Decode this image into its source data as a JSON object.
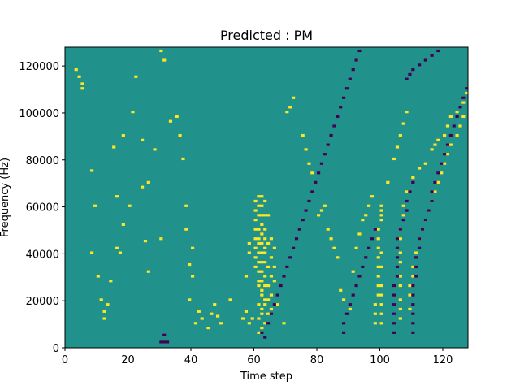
{
  "chart_data": {
    "type": "heatmap",
    "title": "Predicted : PM",
    "xlabel": "Time step",
    "ylabel": "Frequency (Hz)",
    "xlim": [
      0,
      128
    ],
    "ylim": [
      0,
      128000
    ],
    "x_ticks": [
      "0",
      "20",
      "40",
      "60",
      "80",
      "100",
      "120"
    ],
    "y_ticks": [
      "0",
      "20000",
      "40000",
      "60000",
      "80000",
      "100000",
      "120000"
    ],
    "grid": false,
    "legend": "none",
    "colors": {
      "background": "#21918c",
      "high": "#fde725",
      "low": "#440154"
    },
    "levels": {
      "background": 0,
      "high": 1,
      "low": -1
    },
    "n_freq_bins": 128,
    "high_cells": [
      [
        5,
        110
      ],
      [
        5,
        112
      ],
      [
        4,
        115
      ],
      [
        3,
        118
      ],
      [
        8,
        75
      ],
      [
        9,
        60
      ],
      [
        8,
        40
      ],
      [
        10,
        30
      ],
      [
        11,
        20
      ],
      [
        12,
        15
      ],
      [
        12,
        12
      ],
      [
        13,
        18
      ],
      [
        20,
        60
      ],
      [
        18,
        90
      ],
      [
        15,
        85
      ],
      [
        14,
        28
      ],
      [
        17,
        40
      ],
      [
        16,
        42
      ],
      [
        18,
        52
      ],
      [
        16,
        64
      ],
      [
        22,
        115
      ],
      [
        21,
        100
      ],
      [
        24,
        88
      ],
      [
        28,
        84
      ],
      [
        26,
        70
      ],
      [
        24,
        68
      ],
      [
        25,
        45
      ],
      [
        26,
        32
      ],
      [
        30,
        46
      ],
      [
        30,
        126
      ],
      [
        31,
        122
      ],
      [
        33,
        96
      ],
      [
        35,
        98
      ],
      [
        36,
        90
      ],
      [
        37,
        80
      ],
      [
        38,
        60
      ],
      [
        38,
        50
      ],
      [
        40,
        42
      ],
      [
        39,
        35
      ],
      [
        40,
        30
      ],
      [
        39,
        20
      ],
      [
        42,
        15
      ],
      [
        41,
        10
      ],
      [
        43,
        12
      ],
      [
        45,
        8
      ],
      [
        46,
        14
      ],
      [
        47,
        18
      ],
      [
        48,
        13
      ],
      [
        49,
        10
      ],
      [
        52,
        20
      ],
      [
        56,
        12
      ],
      [
        57,
        15
      ],
      [
        58,
        10
      ],
      [
        57,
        30
      ],
      [
        58,
        40
      ],
      [
        58,
        44
      ],
      [
        59,
        12
      ],
      [
        60,
        62
      ],
      [
        60,
        58
      ],
      [
        60,
        54
      ],
      [
        60,
        50
      ],
      [
        60,
        46
      ],
      [
        60,
        42
      ],
      [
        60,
        38
      ],
      [
        60,
        34
      ],
      [
        61,
        64
      ],
      [
        61,
        60
      ],
      [
        61,
        56
      ],
      [
        61,
        50
      ],
      [
        61,
        46
      ],
      [
        61,
        44
      ],
      [
        61,
        40
      ],
      [
        61,
        36
      ],
      [
        61,
        32
      ],
      [
        61,
        28
      ],
      [
        61,
        26
      ],
      [
        61,
        18
      ],
      [
        61,
        12
      ],
      [
        61,
        6
      ],
      [
        62,
        64
      ],
      [
        62,
        60
      ],
      [
        62,
        56
      ],
      [
        62,
        52
      ],
      [
        62,
        48
      ],
      [
        62,
        44
      ],
      [
        62,
        40
      ],
      [
        62,
        36
      ],
      [
        62,
        32
      ],
      [
        62,
        28
      ],
      [
        62,
        24
      ],
      [
        62,
        22
      ],
      [
        62,
        16
      ],
      [
        62,
        14
      ],
      [
        62,
        8
      ],
      [
        63,
        62
      ],
      [
        63,
        56
      ],
      [
        63,
        50
      ],
      [
        63,
        46
      ],
      [
        63,
        42
      ],
      [
        63,
        40
      ],
      [
        63,
        36
      ],
      [
        63,
        30
      ],
      [
        63,
        26
      ],
      [
        63,
        20
      ],
      [
        63,
        18
      ],
      [
        63,
        10
      ],
      [
        64,
        56
      ],
      [
        64,
        44
      ],
      [
        64,
        34
      ],
      [
        64,
        26
      ],
      [
        64,
        20
      ],
      [
        64,
        14
      ],
      [
        65,
        46
      ],
      [
        65,
        38
      ],
      [
        65,
        30
      ],
      [
        65,
        22
      ],
      [
        65,
        16
      ],
      [
        66,
        42
      ],
      [
        66,
        34
      ],
      [
        66,
        28
      ],
      [
        67,
        18
      ],
      [
        69,
        10
      ],
      [
        70,
        100
      ],
      [
        71,
        102
      ],
      [
        72,
        106
      ],
      [
        75,
        90
      ],
      [
        76,
        84
      ],
      [
        77,
        78
      ],
      [
        78,
        74
      ],
      [
        80,
        56
      ],
      [
        81,
        58
      ],
      [
        82,
        60
      ],
      [
        83,
        50
      ],
      [
        84,
        46
      ],
      [
        85,
        42
      ],
      [
        86,
        38
      ],
      [
        87,
        24
      ],
      [
        88,
        20
      ],
      [
        90,
        16
      ],
      [
        91,
        32
      ],
      [
        92,
        42
      ],
      [
        93,
        48
      ],
      [
        94,
        54
      ],
      [
        95,
        56
      ],
      [
        96,
        60
      ],
      [
        97,
        64
      ],
      [
        98,
        10
      ],
      [
        98,
        14
      ],
      [
        98,
        18
      ],
      [
        99,
        22
      ],
      [
        99,
        26
      ],
      [
        99,
        30
      ],
      [
        99,
        34
      ],
      [
        99,
        38
      ],
      [
        99,
        42
      ],
      [
        99,
        46
      ],
      [
        99,
        50
      ],
      [
        100,
        54
      ],
      [
        100,
        56
      ],
      [
        100,
        58
      ],
      [
        100,
        60
      ],
      [
        100,
        10
      ],
      [
        100,
        14
      ],
      [
        100,
        18
      ],
      [
        100,
        22
      ],
      [
        100,
        26
      ],
      [
        100,
        34
      ],
      [
        100,
        40
      ],
      [
        102,
        70
      ],
      [
        104,
        80
      ],
      [
        105,
        85
      ],
      [
        106,
        90
      ],
      [
        107,
        95
      ],
      [
        108,
        100
      ],
      [
        106,
        50
      ],
      [
        106,
        46
      ],
      [
        106,
        40
      ],
      [
        106,
        36
      ],
      [
        106,
        30
      ],
      [
        106,
        26
      ],
      [
        106,
        20
      ],
      [
        106,
        16
      ],
      [
        106,
        12
      ],
      [
        107,
        56
      ],
      [
        107,
        60
      ],
      [
        108,
        66
      ],
      [
        110,
        72
      ],
      [
        112,
        76
      ],
      [
        114,
        78
      ],
      [
        116,
        84
      ],
      [
        117,
        86
      ],
      [
        118,
        88
      ],
      [
        120,
        90
      ],
      [
        121,
        94
      ],
      [
        122,
        98
      ],
      [
        124,
        100
      ],
      [
        126,
        104
      ],
      [
        127,
        108
      ],
      [
        109,
        16
      ],
      [
        109,
        22
      ],
      [
        109,
        26
      ],
      [
        110,
        30
      ],
      [
        110,
        34
      ],
      [
        111,
        40
      ],
      [
        112,
        46
      ],
      [
        113,
        50
      ],
      [
        114,
        54
      ],
      [
        115,
        58
      ],
      [
        116,
        62
      ],
      [
        117,
        66
      ],
      [
        118,
        70
      ],
      [
        119,
        74
      ],
      [
        120,
        78
      ],
      [
        121,
        82
      ],
      [
        122,
        86
      ],
      [
        124,
        90
      ],
      [
        125,
        94
      ],
      [
        126,
        98
      ]
    ],
    "low_cells": [
      [
        30,
        2
      ],
      [
        31,
        2
      ],
      [
        32,
        2
      ],
      [
        31,
        5
      ],
      [
        62,
        6
      ],
      [
        63,
        4
      ],
      [
        64,
        10
      ],
      [
        65,
        14
      ],
      [
        66,
        18
      ],
      [
        67,
        22
      ],
      [
        68,
        26
      ],
      [
        69,
        30
      ],
      [
        70,
        34
      ],
      [
        71,
        38
      ],
      [
        72,
        42
      ],
      [
        73,
        46
      ],
      [
        74,
        50
      ],
      [
        75,
        54
      ],
      [
        76,
        58
      ],
      [
        77,
        62
      ],
      [
        78,
        66
      ],
      [
        79,
        70
      ],
      [
        80,
        74
      ],
      [
        81,
        78
      ],
      [
        82,
        82
      ],
      [
        83,
        86
      ],
      [
        84,
        90
      ],
      [
        85,
        94
      ],
      [
        86,
        98
      ],
      [
        87,
        102
      ],
      [
        88,
        106
      ],
      [
        89,
        110
      ],
      [
        90,
        114
      ],
      [
        91,
        118
      ],
      [
        92,
        122
      ],
      [
        93,
        126
      ],
      [
        88,
        10
      ],
      [
        88,
        6
      ],
      [
        89,
        14
      ],
      [
        90,
        18
      ],
      [
        91,
        22
      ],
      [
        92,
        26
      ],
      [
        93,
        30
      ],
      [
        94,
        34
      ],
      [
        95,
        38
      ],
      [
        96,
        42
      ],
      [
        97,
        46
      ],
      [
        98,
        50
      ],
      [
        104,
        26
      ],
      [
        104,
        22
      ],
      [
        104,
        18
      ],
      [
        104,
        14
      ],
      [
        104,
        10
      ],
      [
        104,
        6
      ],
      [
        105,
        30
      ],
      [
        105,
        34
      ],
      [
        105,
        38
      ],
      [
        105,
        42
      ],
      [
        105,
        46
      ],
      [
        106,
        50
      ],
      [
        107,
        54
      ],
      [
        108,
        58
      ],
      [
        108,
        62
      ],
      [
        109,
        66
      ],
      [
        110,
        70
      ],
      [
        110,
        6
      ],
      [
        110,
        10
      ],
      [
        110,
        14
      ],
      [
        110,
        18
      ],
      [
        110,
        22
      ],
      [
        110,
        26
      ],
      [
        111,
        30
      ],
      [
        111,
        34
      ],
      [
        111,
        38
      ],
      [
        112,
        42
      ],
      [
        112,
        46
      ],
      [
        113,
        50
      ],
      [
        114,
        54
      ],
      [
        115,
        58
      ],
      [
        116,
        62
      ],
      [
        116,
        66
      ],
      [
        117,
        70
      ],
      [
        118,
        74
      ],
      [
        119,
        78
      ],
      [
        120,
        82
      ],
      [
        121,
        86
      ],
      [
        122,
        90
      ],
      [
        123,
        94
      ],
      [
        124,
        98
      ],
      [
        125,
        102
      ],
      [
        126,
        106
      ],
      [
        127,
        110
      ],
      [
        108,
        114
      ],
      [
        109,
        116
      ],
      [
        110,
        118
      ],
      [
        112,
        120
      ],
      [
        114,
        122
      ],
      [
        116,
        124
      ],
      [
        118,
        126
      ]
    ]
  }
}
